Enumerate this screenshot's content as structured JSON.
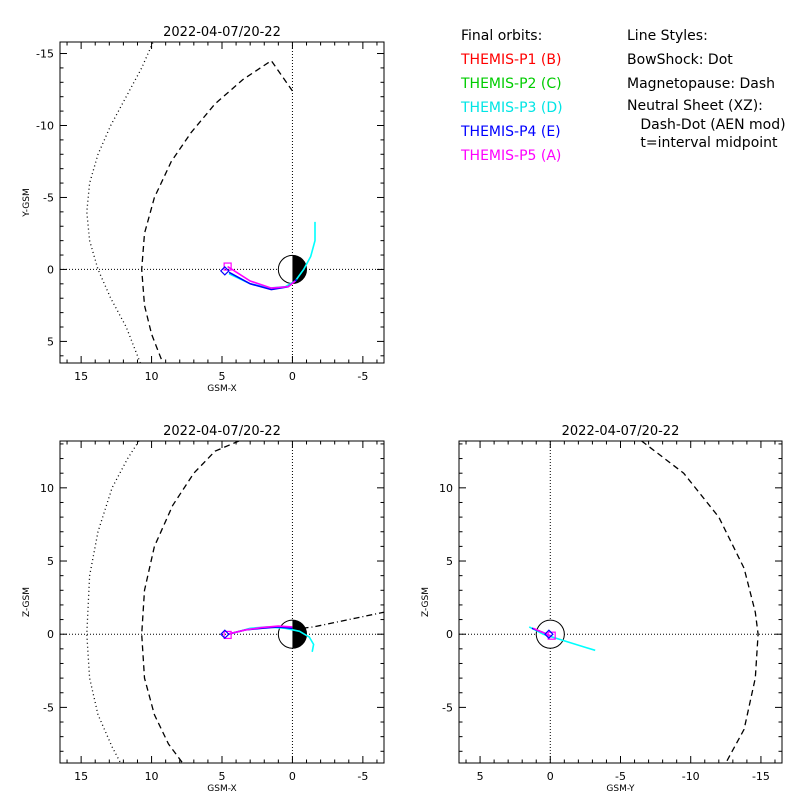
{
  "chart_data": [
    {
      "id": "xy",
      "type": "line",
      "title": "2022-04-07/20-22",
      "xlabel": "GSM-X",
      "ylabel": "Y-GSM",
      "xlim": [
        16.5,
        -6.5
      ],
      "ylim": [
        6.5,
        -15.8
      ],
      "xticks": [
        15,
        10,
        5,
        0,
        -5
      ],
      "xtick_labels": [
        "15",
        "10",
        "5",
        "0",
        "-5"
      ],
      "yticks": [
        5,
        0,
        -5,
        -10,
        -15
      ],
      "ytick_labels": [
        "5",
        "0",
        "-5",
        "-10",
        "-15"
      ],
      "earth": {
        "dark_side": "x<0"
      },
      "bow_shock": {
        "x": [
          9.8,
          10.7,
          11.8,
          12.9,
          13.8,
          14.4,
          14.6,
          14.4,
          13.8,
          12.9,
          11.8,
          10.8
        ],
        "y": [
          -16,
          -14,
          -12,
          -10,
          -8,
          -6,
          -4,
          -2,
          0,
          2,
          4,
          6.5
        ]
      },
      "magnetopause": {
        "x": [
          0,
          1.5,
          3.5,
          5.5,
          7.2,
          8.6,
          9.8,
          10.5,
          10.7,
          10.5,
          10.0,
          9.2
        ],
        "y": [
          -12.4,
          -14.5,
          -13.2,
          -11.5,
          -9.5,
          -7.5,
          -5,
          -2.5,
          0,
          2.5,
          4.5,
          6.5
        ]
      },
      "orbits": {
        "THEMIS-P3": {
          "x": [
            -1.6,
            -1.6,
            -1.3,
            -0.8,
            -0.2,
            0.5,
            1.6,
            3.0,
            4.5
          ],
          "y": [
            -3.3,
            -2.0,
            -0.9,
            0,
            0.8,
            1.2,
            1.3,
            1.0,
            0.3
          ]
        },
        "THEMIS-P4": {
          "x": [
            -0.3,
            0.3,
            1.5,
            3.0,
            4.5
          ],
          "y": [
            0.7,
            1.2,
            1.4,
            1.0,
            0.2
          ]
        },
        "THEMIS-P5": {
          "x": [
            -0.2,
            0.3,
            1.5,
            3.0,
            4.6
          ],
          "y": [
            0.8,
            1.2,
            1.3,
            0.8,
            -0.2
          ]
        }
      },
      "markers": [
        {
          "series": "THEMIS-P5",
          "shape": "square",
          "x": 4.6,
          "y": -0.2
        },
        {
          "series": "THEMIS-P4",
          "shape": "diamond",
          "x": 4.8,
          "y": 0.1
        }
      ]
    },
    {
      "id": "xz",
      "type": "line",
      "title": "2022-04-07/20-22",
      "xlabel": "GSM-X",
      "ylabel": "Z-GSM",
      "xlim": [
        16.5,
        -6.5
      ],
      "ylim": [
        -8.8,
        13.2
      ],
      "xticks": [
        15,
        10,
        5,
        0,
        -5
      ],
      "xtick_labels": [
        "15",
        "10",
        "5",
        "0",
        "-5"
      ],
      "yticks": [
        -5,
        0,
        5,
        10
      ],
      "ytick_labels": [
        "-5",
        "0",
        "5",
        "10"
      ],
      "earth": {
        "dark_side": "x<0"
      },
      "bow_shock": {
        "x": [
          10.9,
          11.7,
          12.8,
          13.8,
          14.4,
          14.6,
          14.4,
          13.8,
          12.8,
          12.2
        ],
        "y": [
          13.2,
          12,
          10,
          7,
          4,
          0,
          -3,
          -5.5,
          -7.7,
          -8.8
        ]
      },
      "magnetopause": {
        "x": [
          3.8,
          5.5,
          7.0,
          8.5,
          9.8,
          10.5,
          10.7,
          10.5,
          9.8,
          8.8,
          7.8
        ],
        "y": [
          13.2,
          12.5,
          11,
          8.8,
          6,
          3,
          0,
          -3,
          -5.5,
          -7.5,
          -8.8
        ]
      },
      "neutral_sheet": {
        "x": [
          0.2,
          -1.5,
          -3.0,
          -4.5,
          -6.5
        ],
        "y": [
          0.3,
          0.5,
          0.8,
          1.1,
          1.5
        ]
      },
      "orbits": {
        "THEMIS-P3": {
          "x": [
            -1.4,
            -1.5,
            -1.2,
            -0.5,
            0.5,
            1.8,
            3.0,
            4.5
          ],
          "y": [
            -1.2,
            -0.7,
            -0.2,
            0.2,
            0.4,
            0.5,
            0.4,
            0
          ]
        },
        "THEMIS-P4": {
          "x": [
            0,
            1.0,
            2.2,
            3.3,
            4.6
          ],
          "y": [
            0.4,
            0.5,
            0.4,
            0.3,
            0
          ]
        },
        "THEMIS-P5": {
          "x": [
            0,
            1.0,
            2.2,
            3.3,
            4.6
          ],
          "y": [
            0.5,
            0.55,
            0.45,
            0.3,
            0
          ]
        }
      },
      "markers": [
        {
          "series": "THEMIS-P5",
          "shape": "square",
          "x": 4.6,
          "y": -0.05
        },
        {
          "series": "THEMIS-P4",
          "shape": "diamond",
          "x": 4.8,
          "y": 0
        }
      ]
    },
    {
      "id": "yz",
      "type": "line",
      "title": "2022-04-07/20-22",
      "xlabel": "GSM-Y",
      "ylabel": "Z-GSM",
      "xlim": [
        6.5,
        -16.5
      ],
      "ylim": [
        -8.8,
        13.2
      ],
      "xticks": [
        5,
        0,
        -5,
        -10,
        -15
      ],
      "xtick_labels": [
        "5",
        "0",
        "-5",
        "-10",
        "-15"
      ],
      "yticks": [
        -5,
        0,
        5,
        10
      ],
      "ytick_labels": [
        "-5",
        "0",
        "5",
        "10"
      ],
      "earth": {
        "dark_side": "none"
      },
      "magnetopause": {
        "x": [
          -6.5,
          -9.5,
          -12.0,
          -13.8,
          -14.6,
          -14.8,
          -14.6,
          -13.8,
          -12.5
        ],
        "y": [
          13.2,
          11,
          8,
          4.5,
          1.5,
          0,
          -3,
          -6.5,
          -8.8
        ]
      },
      "orbits": {
        "THEMIS-P3": {
          "x": [
            1.5,
            0.5,
            -0.5,
            -1.5,
            -2.5,
            -3.2
          ],
          "y": [
            0.5,
            0,
            -0.3,
            -0.6,
            -0.9,
            -1.1
          ]
        },
        "THEMIS-P4": {
          "x": [
            1.3,
            0.6,
            0
          ],
          "y": [
            0.4,
            0.15,
            -0.1
          ]
        },
        "THEMIS-P5": {
          "x": [
            1.2,
            0.5,
            -0.1
          ],
          "y": [
            0.4,
            0.1,
            -0.15
          ]
        }
      },
      "markers": [
        {
          "series": "THEMIS-P5",
          "shape": "square",
          "x": -0.1,
          "y": -0.1
        },
        {
          "series": "THEMIS-P4",
          "shape": "diamond",
          "x": 0.1,
          "y": 0
        }
      ]
    }
  ],
  "series_colors": {
    "THEMIS-P1": "#ff0000",
    "THEMIS-P2": "#00cc00",
    "THEMIS-P3": "#00ffff",
    "THEMIS-P4": "#0000ff",
    "THEMIS-P5": "#ff00ff"
  },
  "legend_orbits": {
    "heading": "Final orbits:",
    "items": [
      {
        "label": "THEMIS-P1 (B)",
        "color": "#ff0000"
      },
      {
        "label": "THEMIS-P2 (C)",
        "color": "#00cc00"
      },
      {
        "label": "THEMIS-P3 (D)",
        "color": "#00ffff"
      },
      {
        "label": "THEMIS-P4 (E)",
        "color": "#0000ff"
      },
      {
        "label": "THEMIS-P5 (A)",
        "color": "#ff00ff"
      }
    ]
  },
  "legend_styles": {
    "heading": "Line Styles:",
    "lines": [
      "BowShock: Dot",
      "Magnetopause: Dash",
      "Neutral Sheet (XZ):",
      "   Dash-Dot (AEN mod)",
      "   t=interval midpoint"
    ]
  }
}
